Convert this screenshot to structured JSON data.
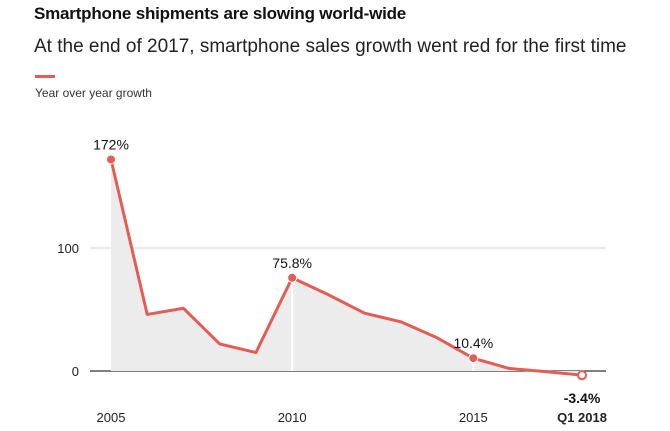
{
  "header": {
    "title": "Smartphone shipments are slowing world-wide",
    "subtitle": "At the end of 2017, smartphone sales growth went red for the first time"
  },
  "colors": {
    "line": "#e35d55",
    "area": "#ececec",
    "grid": "#d6d6d6",
    "axis": "#333333",
    "marker_stem": "#ffffff"
  },
  "chart_data": {
    "type": "area",
    "title": "Smartphone shipments are slowing world-wide",
    "ylabel": "Year over year growth",
    "xlabel": "",
    "x": [
      2005,
      2006,
      2007,
      2008,
      2009,
      2010,
      2011,
      2012,
      2013,
      2014,
      2015,
      2016,
      2017,
      2018
    ],
    "values": [
      172,
      46,
      51,
      22,
      15,
      75.8,
      62,
      47,
      40,
      27,
      10.4,
      2,
      -0.5,
      -3.4
    ],
    "ylim": [
      -8,
      190
    ],
    "yticks": [
      0,
      100
    ],
    "ytick_labels": [
      "0",
      "100"
    ],
    "xticks": [
      {
        "x": 2005,
        "label": "2005",
        "bold": false
      },
      {
        "x": 2010,
        "label": "2010",
        "bold": false
      },
      {
        "x": 2015,
        "label": "2015",
        "bold": false
      },
      {
        "x": 2018,
        "label": "Q1 2018",
        "bold": true
      }
    ],
    "annotations": [
      {
        "index": 0,
        "label": "172%",
        "position": "above",
        "stem": false,
        "hollow": false,
        "bold": false
      },
      {
        "index": 5,
        "label": "75.8%",
        "position": "above",
        "stem": true,
        "hollow": false,
        "bold": false
      },
      {
        "index": 10,
        "label": "10.4%",
        "position": "above",
        "stem": true,
        "hollow": false,
        "bold": false
      },
      {
        "index": 13,
        "label": "-3.4%",
        "position": "below",
        "stem": false,
        "hollow": true,
        "bold": true
      }
    ]
  }
}
